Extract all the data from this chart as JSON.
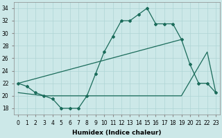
{
  "line1_x": [
    0,
    1,
    2,
    3,
    4,
    5,
    6,
    7,
    8,
    9,
    10,
    11,
    12,
    13,
    14,
    15,
    16,
    17,
    18,
    19,
    20,
    21,
    22,
    23
  ],
  "line1_y": [
    22,
    21.5,
    20.5,
    20,
    19.5,
    18,
    18,
    18,
    20,
    23.5,
    27,
    29.5,
    32,
    32,
    33,
    34,
    31.5,
    31.5,
    31.5,
    29,
    25,
    22,
    22,
    20.5
  ],
  "line2_x": [
    0,
    19
  ],
  "line2_y": [
    22,
    29
  ],
  "line3_x": [
    0,
    3,
    8,
    19,
    22,
    23
  ],
  "line3_y": [
    20.5,
    20,
    20,
    20,
    27,
    20.5
  ],
  "line_color": "#1a6b5a",
  "bg_color": "#cce8e8",
  "grid_color": "#aed4d4",
  "xlabel": "Humidex (Indice chaleur)",
  "xlim": [
    -0.5,
    23.5
  ],
  "ylim": [
    17,
    35
  ],
  "yticks": [
    18,
    20,
    22,
    24,
    26,
    28,
    30,
    32,
    34
  ],
  "xticks": [
    0,
    1,
    2,
    3,
    4,
    5,
    6,
    7,
    8,
    9,
    10,
    11,
    12,
    13,
    14,
    15,
    16,
    17,
    18,
    19,
    20,
    21,
    22,
    23
  ],
  "xticklabels": [
    "0",
    "1",
    "2",
    "3",
    "4",
    "5",
    "6",
    "7",
    "8",
    "9",
    "10",
    "11",
    "12",
    "13",
    "14",
    "15",
    "16",
    "17",
    "18",
    "19",
    "20",
    "21",
    "22",
    "23"
  ],
  "tick_fontsize": 5.5,
  "xlabel_fontsize": 6.5
}
